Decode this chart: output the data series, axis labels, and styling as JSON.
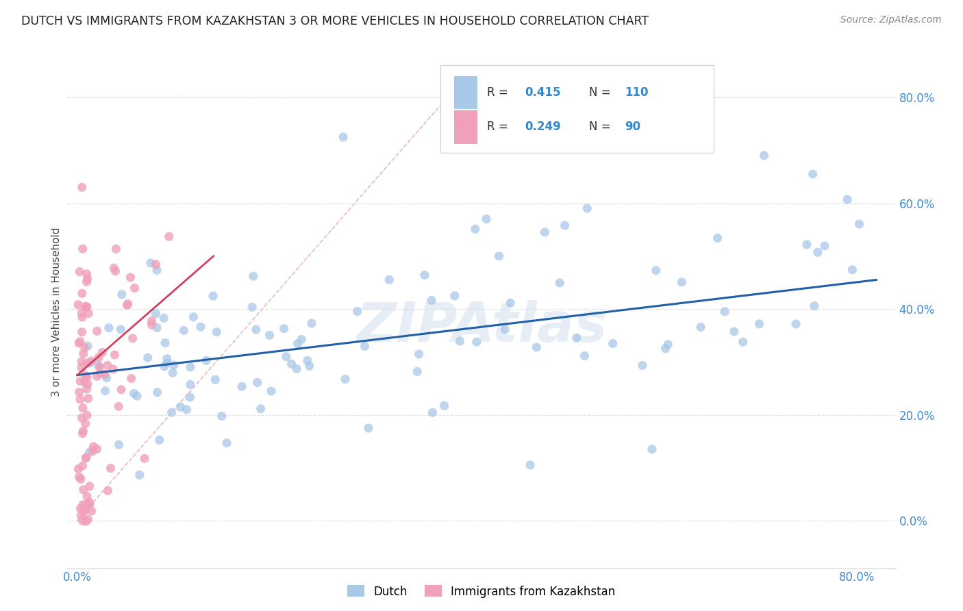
{
  "title": "DUTCH VS IMMIGRANTS FROM KAZAKHSTAN 3 OR MORE VEHICLES IN HOUSEHOLD CORRELATION CHART",
  "source": "Source: ZipAtlas.com",
  "ylabel": "3 or more Vehicles in Household",
  "ytick_labels": [
    "0.0%",
    "20.0%",
    "40.0%",
    "60.0%",
    "80.0%"
  ],
  "ytick_values": [
    0.0,
    0.2,
    0.4,
    0.6,
    0.8
  ],
  "xlim": [
    -0.01,
    0.84
  ],
  "ylim": [
    -0.09,
    0.88
  ],
  "legend_r_dutch": "0.415",
  "legend_n_dutch": "110",
  "legend_r_kaz": "0.249",
  "legend_n_kaz": "90",
  "dutch_color": "#a8c8e8",
  "kaz_color": "#f0a0b8",
  "dutch_line_color": "#2060a8",
  "kaz_line_color": "#d04060",
  "diagonal_color": "#e8b0b8",
  "background_color": "#ffffff",
  "watermark": "ZIPAtlas",
  "grid_color": "#e0e0e0",
  "title_color": "#222222",
  "source_color": "#888888",
  "tick_color": "#4488cc",
  "legend_text_color": "#333333",
  "legend_val_color": "#3388cc",
  "dutch_line_y0": 0.275,
  "dutch_line_y1": 0.455,
  "kaz_line_y0": 0.275,
  "kaz_line_y1": 0.5
}
